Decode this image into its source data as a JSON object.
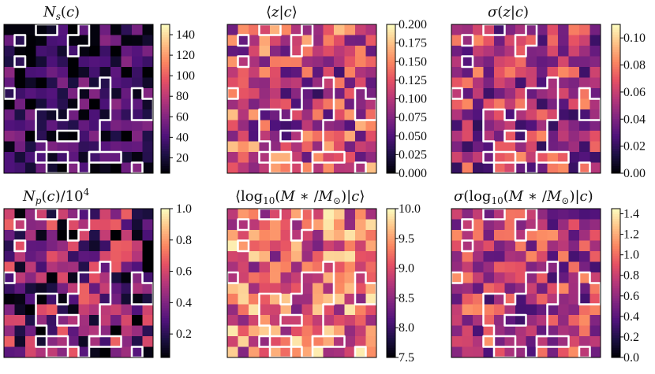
{
  "figure": {
    "grid_rows": 2,
    "grid_cols": 3,
    "cells_per_side": 14
  },
  "colors": {
    "cmap": [
      "#000004",
      "#1c1044",
      "#4f127b",
      "#812581",
      "#b5367a",
      "#e55064",
      "#fb8761",
      "#fec287",
      "#fcfdbf"
    ],
    "outline": "#ffffff"
  },
  "chart_data": [
    {
      "type": "heatmap",
      "title": "N_s(c)",
      "cmap": "magma",
      "colorbar": {
        "min": 5,
        "max": 150,
        "ticks": [
          20,
          40,
          60,
          80,
          100,
          120,
          140
        ],
        "tick_labels": [
          "20",
          "40",
          "60",
          "80",
          "100",
          "120",
          "140"
        ]
      },
      "base": 0.18,
      "variance": 0.22,
      "edge_bias": 0.0
    },
    {
      "type": "heatmap",
      "title": "⟨z|c⟩",
      "cmap": "magma",
      "colorbar": {
        "min": 0.0,
        "max": 0.2,
        "ticks": [
          0.0,
          0.025,
          0.05,
          0.075,
          0.1,
          0.125,
          0.15,
          0.175,
          0.2
        ],
        "tick_labels": [
          "0.000",
          "0.025",
          "0.050",
          "0.075",
          "0.100",
          "0.125",
          "0.150",
          "0.175",
          "0.200"
        ]
      },
      "base": 0.5,
      "variance": 0.3,
      "edge_bias": 0.15
    },
    {
      "type": "heatmap",
      "title": "σ(z|c)",
      "cmap": "magma",
      "colorbar": {
        "min": 0.0,
        "max": 0.11,
        "ticks": [
          0.0,
          0.02,
          0.04,
          0.06,
          0.08,
          0.1
        ],
        "tick_labels": [
          "0.00",
          "0.02",
          "0.04",
          "0.06",
          "0.08",
          "0.10"
        ]
      },
      "base": 0.45,
      "variance": 0.3,
      "edge_bias": 0.05
    },
    {
      "type": "heatmap",
      "title": "N_p(c)/10^4",
      "cmap": "magma",
      "colorbar": {
        "min": 0.05,
        "max": 1.0,
        "ticks": [
          0.2,
          0.4,
          0.6,
          0.8,
          1.0
        ],
        "tick_labels": [
          "0.2",
          "0.4",
          "0.6",
          "0.8",
          "1.0"
        ]
      },
      "base": 0.32,
      "variance": 0.35,
      "edge_bias": 0.0
    },
    {
      "type": "heatmap",
      "title": "⟨log10(M*/M⊙)|c⟩",
      "cmap": "magma",
      "colorbar": {
        "min": 7.5,
        "max": 10.0,
        "ticks": [
          7.5,
          8.0,
          8.5,
          9.0,
          9.5,
          10.0
        ],
        "tick_labels": [
          "7.5",
          "8.0",
          "8.5",
          "9.0",
          "9.5",
          "10.0"
        ]
      },
      "base": 0.62,
      "variance": 0.3,
      "edge_bias": 0.12
    },
    {
      "type": "heatmap",
      "title": "σ(log10(M*/M⊙)|c)",
      "cmap": "magma",
      "colorbar": {
        "min": 0.0,
        "max": 1.45,
        "ticks": [
          0.0,
          0.2,
          0.4,
          0.6,
          0.8,
          1.0,
          1.2,
          1.4
        ],
        "tick_labels": [
          "0.0",
          "0.2",
          "0.4",
          "0.6",
          "0.8",
          "1.0",
          "1.2",
          "1.4"
        ]
      },
      "base": 0.48,
      "variance": 0.28,
      "edge_bias": 0.05
    }
  ]
}
